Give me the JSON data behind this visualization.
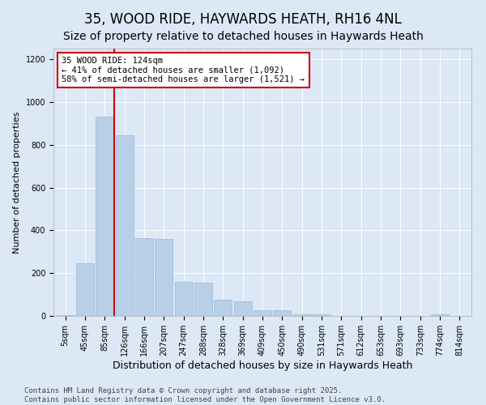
{
  "title": "35, WOOD RIDE, HAYWARDS HEATH, RH16 4NL",
  "subtitle": "Size of property relative to detached houses in Haywards Heath",
  "xlabel": "Distribution of detached houses by size in Haywards Heath",
  "ylabel": "Number of detached properties",
  "categories": [
    "5sqm",
    "45sqm",
    "85sqm",
    "126sqm",
    "166sqm",
    "207sqm",
    "247sqm",
    "288sqm",
    "328sqm",
    "369sqm",
    "409sqm",
    "450sqm",
    "490sqm",
    "531sqm",
    "571sqm",
    "612sqm",
    "653sqm",
    "693sqm",
    "733sqm",
    "774sqm",
    "814sqm"
  ],
  "values": [
    5,
    248,
    930,
    845,
    365,
    360,
    160,
    155,
    75,
    70,
    28,
    25,
    8,
    8,
    0,
    0,
    0,
    0,
    0,
    8,
    0
  ],
  "bar_color": "#b8cfe8",
  "bar_edge_color": "#9ab8d8",
  "vline_color": "#cc0000",
  "vline_position": 2.5,
  "annotation_text": "35 WOOD RIDE: 124sqm\n← 41% of detached houses are smaller (1,092)\n58% of semi-detached houses are larger (1,521) →",
  "annotation_box_facecolor": "#ffffff",
  "annotation_box_edgecolor": "#cc0000",
  "ylim": [
    0,
    1250
  ],
  "yticks": [
    0,
    200,
    400,
    600,
    800,
    1000,
    1200
  ],
  "background_color": "#dce8f5",
  "plot_background": "#dce8f5",
  "footer": "Contains HM Land Registry data © Crown copyright and database right 2025.\nContains public sector information licensed under the Open Government Licence v3.0.",
  "title_fontsize": 12,
  "subtitle_fontsize": 10,
  "xlabel_fontsize": 9,
  "ylabel_fontsize": 8,
  "tick_fontsize": 7,
  "footer_fontsize": 6.5,
  "annotation_fontsize": 7.5
}
